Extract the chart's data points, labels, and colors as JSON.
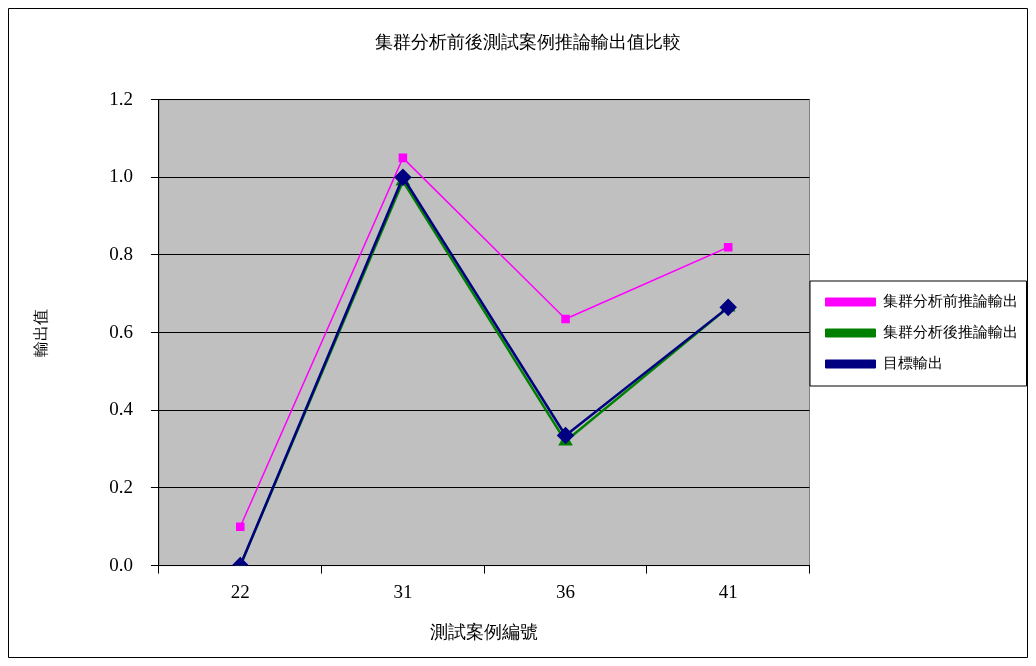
{
  "chart_data": {
    "type": "line",
    "title": "集群分析前後測試案例推論輸出值比較",
    "xlabel": "測試案例編號",
    "ylabel": "輸出值",
    "categories": [
      "22",
      "31",
      "36",
      "41"
    ],
    "series": [
      {
        "name": "集群分析前推論輸出",
        "color": "#ff00ff",
        "marker": "square",
        "values": [
          0.1,
          1.05,
          0.635,
          0.82
        ]
      },
      {
        "name": "集群分析後推論輸出",
        "color": "#008000",
        "marker": "triangle",
        "values": [
          0.0,
          0.99,
          0.32,
          0.665
        ]
      },
      {
        "name": "目標輸出",
        "color": "#000080",
        "marker": "diamond",
        "values": [
          0.0,
          1.0,
          0.335,
          0.665
        ]
      }
    ],
    "ylim": [
      0,
      1.2
    ],
    "yticks": [
      {
        "value": 0,
        "label": "0.0"
      },
      {
        "value": 0.2,
        "label": "0.2"
      },
      {
        "value": 0.4,
        "label": "0.4"
      },
      {
        "value": 0.6,
        "label": "0.6"
      },
      {
        "value": 0.8,
        "label": "0.8"
      },
      {
        "value": 1.0,
        "label": "1.0"
      },
      {
        "value": 1.2,
        "label": "1.2"
      }
    ],
    "grid": "y",
    "legend": "right",
    "line_style": "solid"
  }
}
